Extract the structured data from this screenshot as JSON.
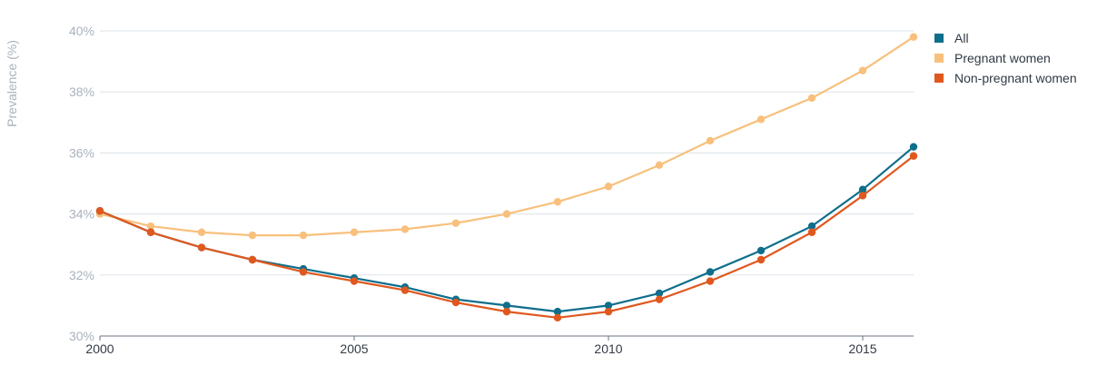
{
  "chart_data": {
    "type": "line",
    "ylabel": "Prevalence (%)",
    "xlabel": "",
    "x": [
      2000,
      2001,
      2002,
      2003,
      2004,
      2005,
      2006,
      2007,
      2008,
      2009,
      2010,
      2011,
      2012,
      2013,
      2014,
      2015,
      2016
    ],
    "xlim": [
      2000,
      2016
    ],
    "ylim": [
      30,
      40
    ],
    "x_ticks": [
      2000,
      2005,
      2010,
      2015
    ],
    "x_tick_labels": [
      "2000",
      "2005",
      "2010",
      "2015"
    ],
    "y_ticks": [
      30,
      32,
      34,
      36,
      38,
      40
    ],
    "y_tick_labels": [
      "30%",
      "32%",
      "34%",
      "36%",
      "38%",
      "40%"
    ],
    "grid": true,
    "legend_position": "top-right",
    "series": [
      {
        "name": "All",
        "color": "#0f6e8c",
        "values": [
          34.1,
          33.4,
          32.9,
          32.5,
          32.2,
          31.9,
          31.6,
          31.2,
          31.0,
          30.8,
          31.0,
          31.4,
          32.1,
          32.8,
          33.6,
          34.8,
          36.2
        ]
      },
      {
        "name": "Pregnant women",
        "color": "#f8c07c",
        "values": [
          34.0,
          33.6,
          33.4,
          33.3,
          33.3,
          33.4,
          33.5,
          33.7,
          34.0,
          34.4,
          34.9,
          35.6,
          36.4,
          37.1,
          37.8,
          38.7,
          39.8
        ]
      },
      {
        "name": "Non-pregnant women",
        "color": "#e0581e",
        "values": [
          34.1,
          33.4,
          32.9,
          32.5,
          32.1,
          31.8,
          31.5,
          31.1,
          30.8,
          30.6,
          30.8,
          31.2,
          31.8,
          32.5,
          33.4,
          34.6,
          35.9
        ]
      }
    ]
  }
}
